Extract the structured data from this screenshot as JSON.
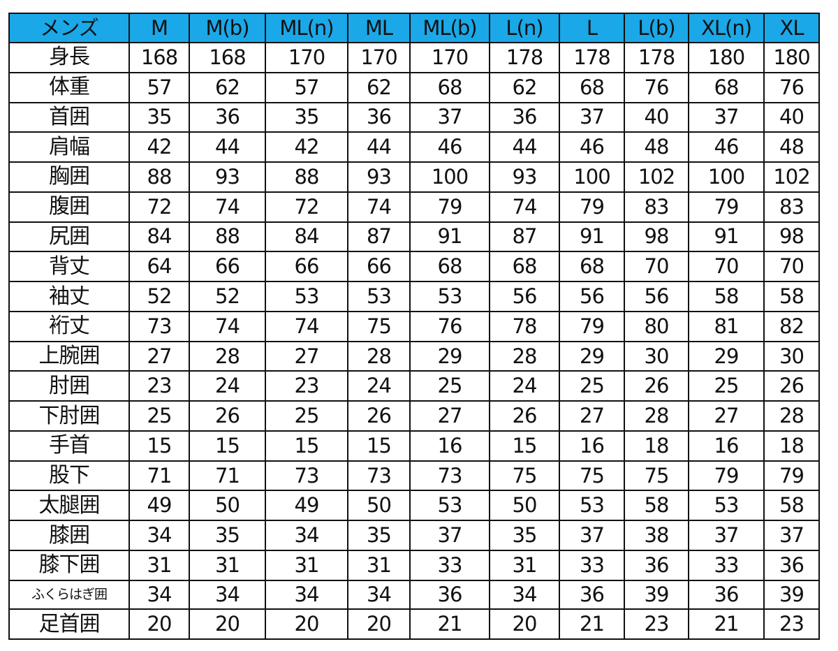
{
  "table": {
    "header": [
      "メンズ",
      "M",
      "M(b)",
      "ML(n)",
      "ML",
      "ML(b)",
      "L(n)",
      "L",
      "L(b)",
      "XL(n)",
      "XL"
    ],
    "header_color": "#1aa8e8",
    "rows": [
      {
        "label": "身長",
        "values": [
          "168",
          "168",
          "170",
          "170",
          "170",
          "178",
          "178",
          "178",
          "180",
          "180"
        ]
      },
      {
        "label": "体重",
        "values": [
          "57",
          "62",
          "57",
          "62",
          "68",
          "62",
          "68",
          "76",
          "68",
          "76"
        ]
      },
      {
        "label": "首囲",
        "values": [
          "35",
          "36",
          "35",
          "36",
          "37",
          "36",
          "37",
          "40",
          "37",
          "40"
        ]
      },
      {
        "label": "肩幅",
        "values": [
          "42",
          "44",
          "42",
          "44",
          "46",
          "44",
          "46",
          "48",
          "46",
          "48"
        ]
      },
      {
        "label": "胸囲",
        "values": [
          "88",
          "93",
          "88",
          "93",
          "100",
          "93",
          "100",
          "102",
          "100",
          "102"
        ]
      },
      {
        "label": "腹囲",
        "values": [
          "72",
          "74",
          "72",
          "74",
          "79",
          "74",
          "79",
          "83",
          "79",
          "83"
        ]
      },
      {
        "label": "尻囲",
        "values": [
          "84",
          "88",
          "84",
          "87",
          "91",
          "87",
          "91",
          "98",
          "91",
          "98"
        ]
      },
      {
        "label": "背丈",
        "values": [
          "64",
          "66",
          "66",
          "66",
          "68",
          "68",
          "68",
          "70",
          "70",
          "70"
        ]
      },
      {
        "label": "袖丈",
        "values": [
          "52",
          "52",
          "53",
          "53",
          "53",
          "56",
          "56",
          "56",
          "58",
          "58"
        ]
      },
      {
        "label": "裄丈",
        "values": [
          "73",
          "74",
          "74",
          "75",
          "76",
          "78",
          "79",
          "80",
          "81",
          "82"
        ]
      },
      {
        "label": "上腕囲",
        "values": [
          "27",
          "28",
          "27",
          "28",
          "29",
          "28",
          "29",
          "30",
          "29",
          "30"
        ]
      },
      {
        "label": "肘囲",
        "values": [
          "23",
          "24",
          "23",
          "24",
          "25",
          "24",
          "25",
          "26",
          "25",
          "26"
        ]
      },
      {
        "label": "下肘囲",
        "values": [
          "25",
          "26",
          "25",
          "26",
          "27",
          "26",
          "27",
          "28",
          "27",
          "28"
        ]
      },
      {
        "label": "手首",
        "values": [
          "15",
          "15",
          "15",
          "15",
          "16",
          "15",
          "16",
          "18",
          "16",
          "18"
        ]
      },
      {
        "label": "股下",
        "values": [
          "71",
          "71",
          "73",
          "73",
          "73",
          "75",
          "75",
          "75",
          "79",
          "79"
        ]
      },
      {
        "label": "太腿囲",
        "values": [
          "49",
          "50",
          "49",
          "50",
          "53",
          "50",
          "53",
          "58",
          "53",
          "58"
        ]
      },
      {
        "label": "膝囲",
        "values": [
          "34",
          "35",
          "34",
          "35",
          "37",
          "35",
          "37",
          "38",
          "37",
          "37"
        ]
      },
      {
        "label": "膝下囲",
        "values": [
          "31",
          "31",
          "31",
          "31",
          "33",
          "31",
          "33",
          "36",
          "33",
          "36"
        ]
      },
      {
        "label": "ふくらはぎ囲",
        "values": [
          "34",
          "34",
          "34",
          "34",
          "36",
          "34",
          "36",
          "39",
          "36",
          "39"
        ]
      },
      {
        "label": "足首囲",
        "values": [
          "20",
          "20",
          "20",
          "20",
          "21",
          "20",
          "21",
          "23",
          "21",
          "23"
        ]
      }
    ]
  }
}
